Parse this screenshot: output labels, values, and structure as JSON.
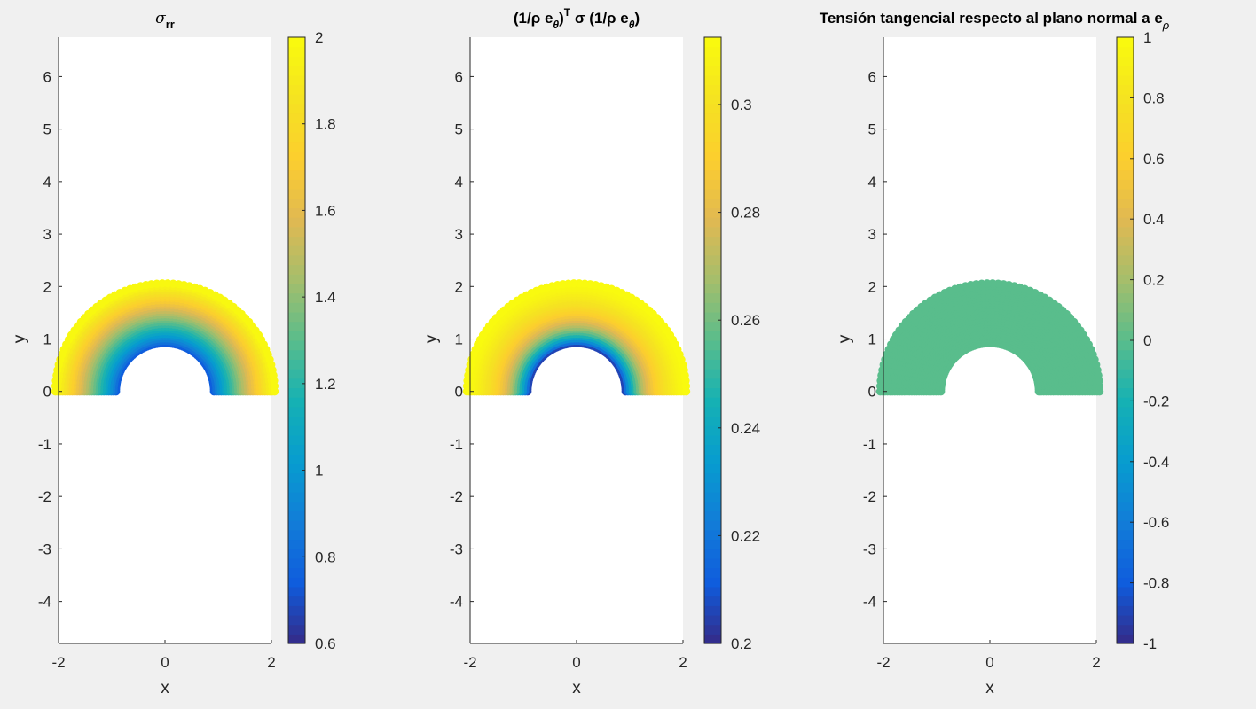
{
  "figure": {
    "background": "#f0f0f0",
    "axes_color": "#262626"
  },
  "chart_data": [
    {
      "type": "scatter",
      "title": {
        "main": "σ",
        "sub": "rr"
      },
      "xlabel": "x",
      "ylabel": "y",
      "xlim": [
        -2,
        2
      ],
      "ylim": [
        -4.8,
        6.75
      ],
      "xticks": [
        "-2",
        "0",
        "2"
      ],
      "yticks": [
        "6",
        "5",
        "4",
        "3",
        "2",
        "1",
        "0",
        "-1",
        "-2",
        "-3",
        "-4"
      ],
      "colormap": "parula",
      "field": {
        "inner_radius": 0.9,
        "outer_radius": 2.08,
        "mode": "radial",
        "inner_value": 0.7,
        "outer_value": 2.0
      },
      "colorbar": {
        "clim": [
          0.6,
          2.0
        ],
        "ticks": [
          2.0,
          1.8,
          1.6,
          1.4,
          1.2,
          1.0,
          0.8,
          0.6
        ],
        "ticklabels": [
          "2",
          "1.8",
          "1.6",
          "1.4",
          "1.2",
          "1",
          "0.8",
          "0.6"
        ]
      }
    },
    {
      "type": "scatter",
      "title": {
        "main": "(1/ρ e",
        "sub1": "θ",
        "mid": ") σ (1/ρ e",
        "sup": "T",
        "sub2": "θ",
        "end": ")"
      },
      "xlabel": "x",
      "ylabel": "y",
      "xlim": [
        -2,
        2
      ],
      "ylim": [
        -4.8,
        6.75
      ],
      "xticks": [
        "-2",
        "0",
        "2"
      ],
      "yticks": [
        "6",
        "5",
        "4",
        "3",
        "2",
        "1",
        "0",
        "-1",
        "-2",
        "-3",
        "-4"
      ],
      "colormap": "parula",
      "field": {
        "inner_radius": 0.9,
        "outer_radius": 2.08,
        "mode": "inverse_square",
        "inner_value": 0.2,
        "outer_value": 0.3125
      },
      "colorbar": {
        "clim": [
          0.2,
          0.3125
        ],
        "ticks": [
          0.3,
          0.28,
          0.26,
          0.24,
          0.22,
          0.2
        ],
        "ticklabels": [
          "0.3",
          "0.28",
          "0.26",
          "0.24",
          "0.22",
          "0.2"
        ]
      }
    },
    {
      "type": "scatter",
      "title": {
        "main": "Tensión tangencial respecto al plano normal a e",
        "sub": "ρ"
      },
      "xlabel": "x",
      "ylabel": "y",
      "xlim": [
        -2,
        2
      ],
      "ylim": [
        -4.8,
        6.75
      ],
      "xticks": [
        "-2",
        "0",
        "2"
      ],
      "yticks": [
        "6",
        "5",
        "4",
        "3",
        "2",
        "1",
        "0",
        "-1",
        "-2",
        "-3",
        "-4"
      ],
      "colormap": "parula",
      "field": {
        "inner_radius": 0.9,
        "outer_radius": 2.08,
        "mode": "constant",
        "inner_value": 0.0,
        "outer_value": 0.0
      },
      "colorbar": {
        "clim": [
          -1,
          1
        ],
        "ticks": [
          1,
          0.8,
          0.6,
          0.4,
          0.2,
          0,
          -0.2,
          -0.4,
          -0.6,
          -0.8,
          -1
        ],
        "ticklabels": [
          "1",
          "0.8",
          "0.6",
          "0.4",
          "0.2",
          "0",
          "-0.2",
          "-0.4",
          "-0.6",
          "-0.8",
          "-1"
        ]
      }
    }
  ]
}
